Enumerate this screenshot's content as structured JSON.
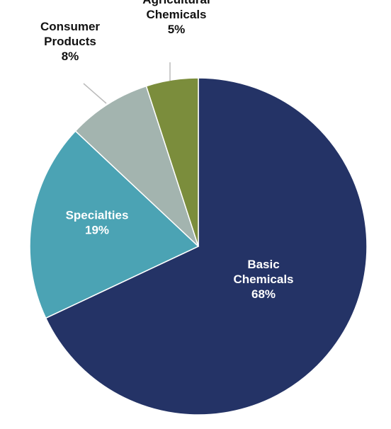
{
  "chart_data": {
    "type": "pie",
    "title": "",
    "start_angle_deg": 0,
    "direction": "clockwise",
    "slices": [
      {
        "label": [
          "Basic",
          "Chemicals"
        ],
        "value": 68,
        "value_label": "68%",
        "color": "#243366",
        "label_color": "#ffffff",
        "label_placement": "inside"
      },
      {
        "label": [
          "Specialties"
        ],
        "value": 19,
        "value_label": "19%",
        "color": "#4ba3b4",
        "label_color": "#ffffff",
        "label_placement": "inside"
      },
      {
        "label": [
          "Consumer",
          "Products"
        ],
        "value": 8,
        "value_label": "8%",
        "color": "#a3b4af",
        "label_color": "#111111",
        "label_placement": "outside"
      },
      {
        "label": [
          "Agricultural",
          "Chemicals"
        ],
        "value": 5,
        "value_label": "5%",
        "color": "#7b8d3c",
        "label_color": "#111111",
        "label_placement": "outside"
      }
    ],
    "legend": "none",
    "leader_line_color": "#bbbbbb",
    "slice_border_color": "#ffffff"
  }
}
